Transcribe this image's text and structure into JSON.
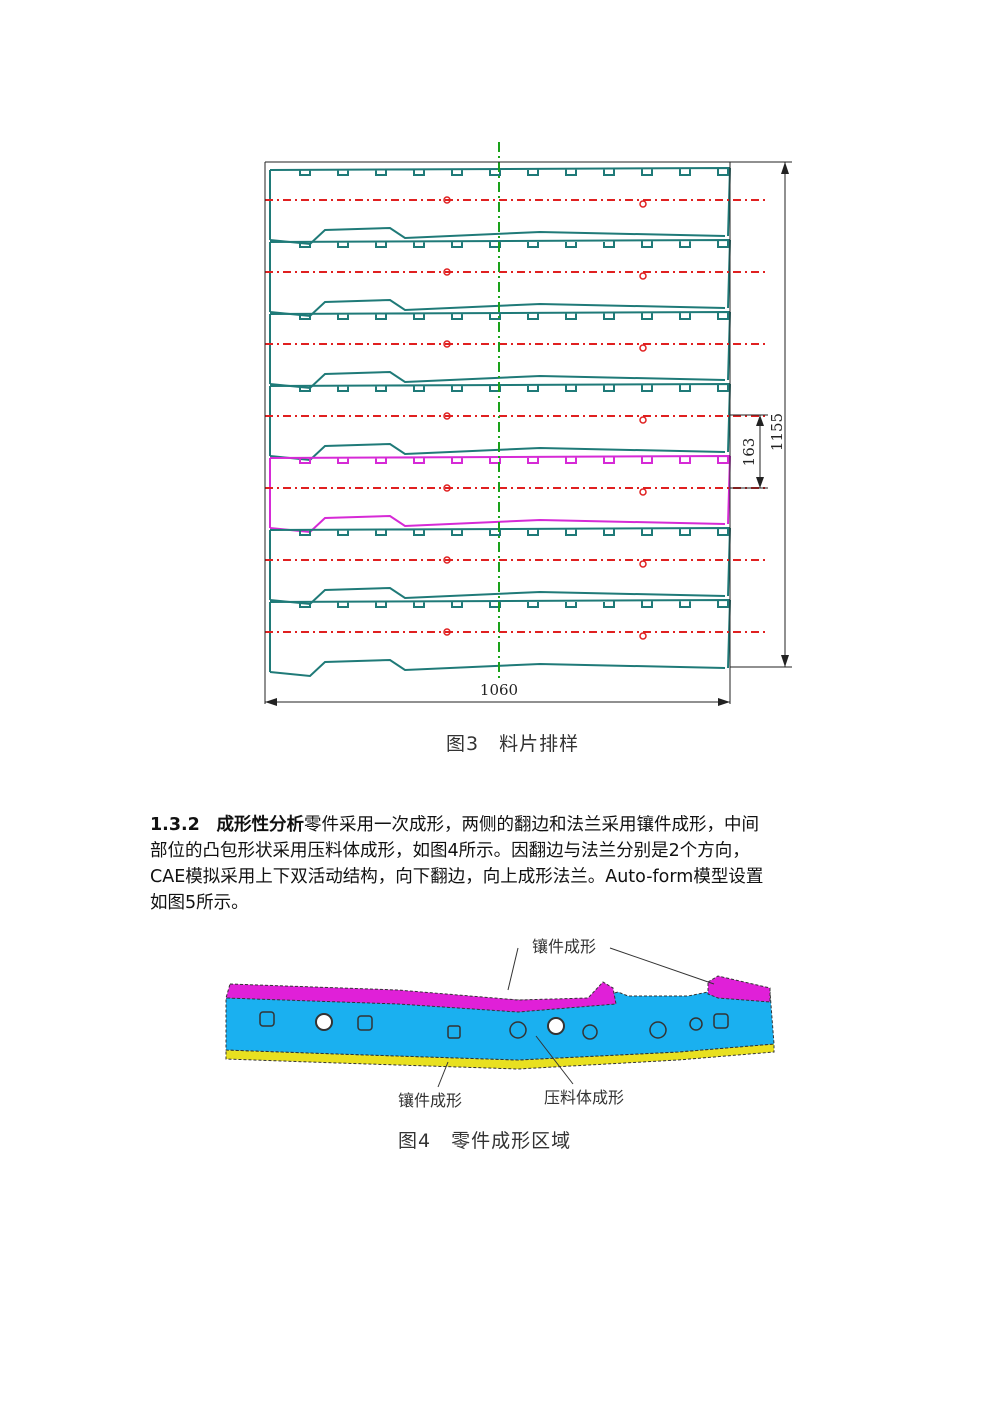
{
  "figure3": {
    "width_label": "1060",
    "height_label": "1155",
    "pitch_label": "163",
    "caption": "图3　料片排样",
    "colors": {
      "outline": "#1f7a78",
      "highlight": "#d62ad6",
      "centerline": "#e02020",
      "axis": "#1aa11a"
    }
  },
  "section": {
    "number": "1.3.2",
    "title": "成形性分析",
    "lines": [
      "零件采用一次成形，两侧的翻边和法兰采用镶件成形，中间",
      "部位的凸包形状采用压料体成形，如图4所示。因翻边与法兰分别是2个方向，",
      "CAE模拟采用上下双活动结构，向下翻边，向上成形法兰。Auto-form模型设置",
      "如图5所示。"
    ]
  },
  "figure4": {
    "label_top": "镶件成形",
    "label_bottom_left": "镶件成形",
    "label_bottom_right": "压料体成形",
    "caption": "图4　零件成形区域",
    "colors": {
      "flange": "#e020d8",
      "body": "#1ab0f0",
      "edge": "#e8e020"
    }
  }
}
